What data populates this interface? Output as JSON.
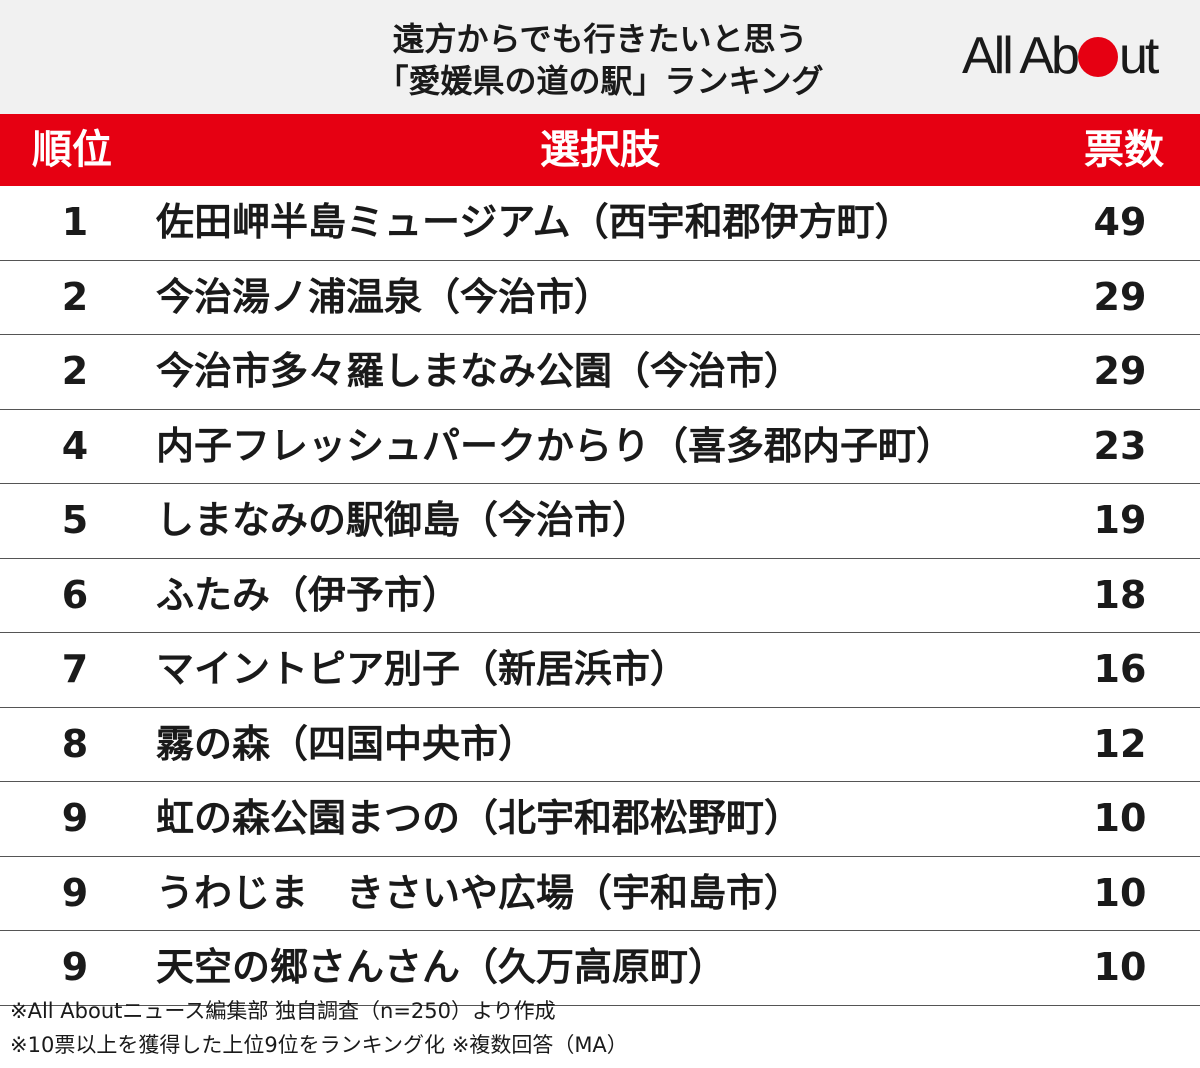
{
  "title": {
    "line1": "遠方からでも行きたいと思う",
    "line2": "「愛媛県の道の駅」ランキング"
  },
  "logo": {
    "pre": "All Ab",
    "post": "ut",
    "dot_color": "#e60012"
  },
  "colors": {
    "accent": "#e60012",
    "header_bg": "#f1f1f1"
  },
  "chart_data": {
    "type": "table",
    "columns": [
      "順位",
      "選択肢",
      "票数"
    ],
    "rows": [
      {
        "rank": "1",
        "name": "佐田岬半島ミュージアム（西宇和郡伊方町）",
        "votes": "49"
      },
      {
        "rank": "2",
        "name": "今治湯ノ浦温泉（今治市）",
        "votes": "29"
      },
      {
        "rank": "2",
        "name": "今治市多々羅しまなみ公園（今治市）",
        "votes": "29"
      },
      {
        "rank": "4",
        "name": "内子フレッシュパークからり（喜多郡内子町）",
        "votes": "23"
      },
      {
        "rank": "5",
        "name": "しまなみの駅御島（今治市）",
        "votes": "19"
      },
      {
        "rank": "6",
        "name": "ふたみ（伊予市）",
        "votes": "18"
      },
      {
        "rank": "7",
        "name": "マイントピア別子（新居浜市）",
        "votes": "16"
      },
      {
        "rank": "8",
        "name": "霧の森（四国中央市）",
        "votes": "12"
      },
      {
        "rank": "9",
        "name": "虹の森公園まつの（北宇和郡松野町）",
        "votes": "10"
      },
      {
        "rank": "9",
        "name": "うわじま　きさいや広場（宇和島市）",
        "votes": "10"
      },
      {
        "rank": "9",
        "name": "天空の郷さんさん（久万高原町）",
        "votes": "10"
      }
    ]
  },
  "notes": [
    "※All Aboutニュース編集部 独自調査（n=250）より作成",
    "※10票以上を獲得した上位9位をランキング化 ※複数回答（MA）"
  ]
}
